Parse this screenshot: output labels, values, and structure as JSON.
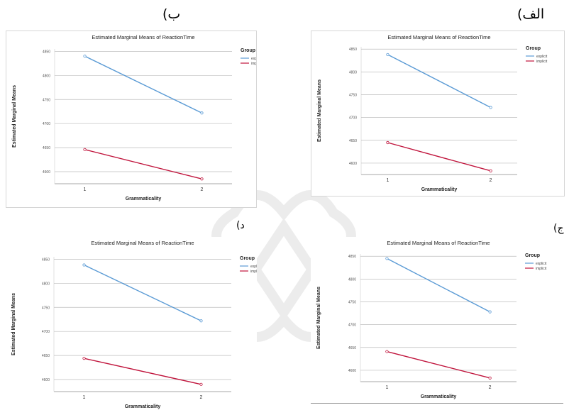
{
  "panels": [
    {
      "letter": "الف)"
    },
    {
      "letter": "ب)"
    },
    {
      "letter": "ج)"
    },
    {
      "letter": "د)"
    }
  ],
  "chart_data": [
    {
      "type": "line",
      "title": "Estimated Marginal Means of ReactionTime",
      "xlabel": "Grammaticality",
      "ylabel": "Estimated Marginal Means",
      "categories": [
        "1",
        "2"
      ],
      "y_ticks": [
        "4850",
        "4800",
        "4750",
        "4700",
        "4650",
        "4600"
      ],
      "ylim": [
        4575,
        4855
      ],
      "legend_title": "Group",
      "series": [
        {
          "name": "explicit",
          "color": "#5b9bd5",
          "values": [
            4838,
            4722
          ]
        },
        {
          "name": "implicit",
          "color": "#c0143c",
          "values": [
            4645,
            4583
          ]
        }
      ]
    },
    {
      "type": "line",
      "title": "Estimated Marginal Means of ReactionTime",
      "xlabel": "Grammaticality",
      "ylabel": "Estimated Marginal Means",
      "categories": [
        "1",
        "2"
      ],
      "y_ticks": [
        "4850",
        "4800",
        "4750",
        "4700",
        "4650",
        "4600"
      ],
      "ylim": [
        4575,
        4855
      ],
      "legend_title": "Group",
      "series": [
        {
          "name": "explicit",
          "color": "#5b9bd5",
          "values": [
            4840,
            4722
          ]
        },
        {
          "name": "implicit",
          "color": "#c0143c",
          "values": [
            4646,
            4585
          ]
        }
      ]
    },
    {
      "type": "line",
      "title": "Estimated Marginal Means of ReactionTime",
      "xlabel": "Grammaticality",
      "ylabel": "Estimated Marginal Means",
      "categories": [
        "1",
        "2"
      ],
      "y_ticks": [
        "4850",
        "4800",
        "4750",
        "4700",
        "4650",
        "4600"
      ],
      "ylim": [
        4575,
        4855
      ],
      "legend_title": "Group",
      "series": [
        {
          "name": "explicit",
          "color": "#5b9bd5",
          "values": [
            4845,
            4728
          ]
        },
        {
          "name": "implicit",
          "color": "#c0143c",
          "values": [
            4641,
            4583
          ]
        }
      ]
    },
    {
      "type": "line",
      "title": "Estimated Marginal Means of ReactionTime",
      "xlabel": "Grammaticality",
      "ylabel": "Estimated Marginal Means",
      "categories": [
        "1",
        "2"
      ],
      "y_ticks": [
        "4850",
        "4800",
        "4750",
        "4700",
        "4650",
        "4600"
      ],
      "ylim": [
        4575,
        4855
      ],
      "legend_title": "Group",
      "series": [
        {
          "name": "explicit",
          "color": "#5b9bd5",
          "values": [
            4838,
            4722
          ]
        },
        {
          "name": "implicit",
          "color": "#c0143c",
          "values": [
            4644,
            4590
          ]
        }
      ]
    }
  ]
}
